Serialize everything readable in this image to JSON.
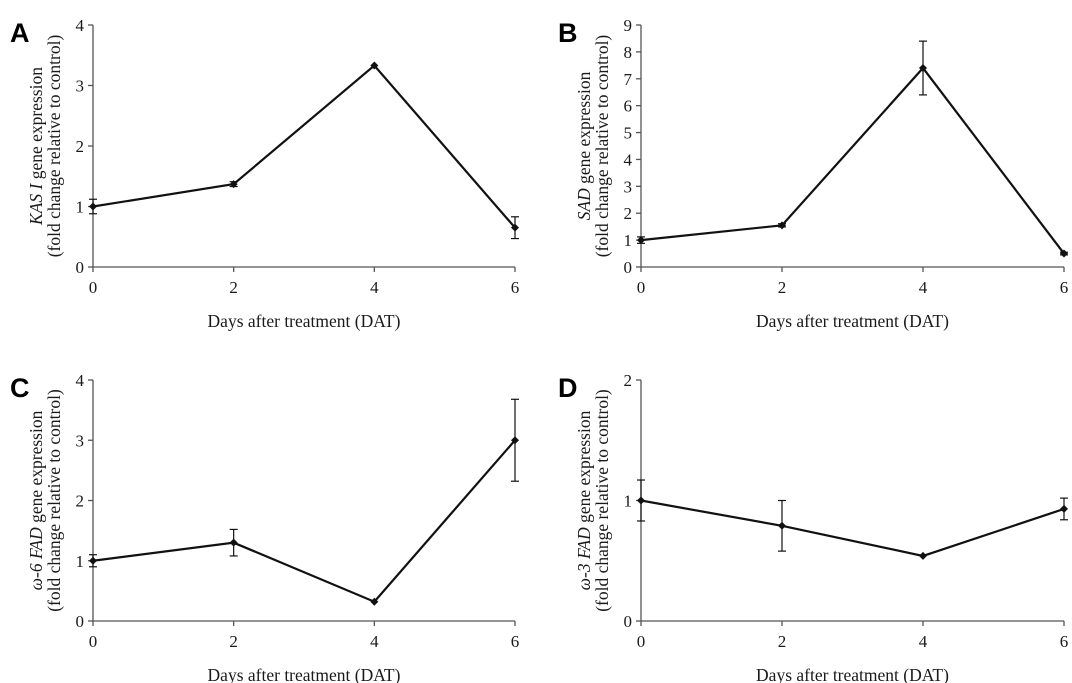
{
  "chart_data": [
    {
      "panel": "A",
      "type": "line",
      "x": [
        0,
        2,
        4,
        6
      ],
      "series": [
        {
          "values": [
            1.0,
            1.37,
            3.33,
            0.65
          ],
          "error": [
            0.12,
            0.04,
            0.0,
            0.18
          ]
        }
      ],
      "ylabel_italic": "KAS I",
      "ylabel_rest": " gene expression",
      "ylabel_line2": "(fold change relative to control)",
      "xlabel": "Days after treatment (DAT)",
      "xticks": [
        "0",
        "2",
        "4",
        "6"
      ],
      "yticks": [
        "0",
        "1",
        "2",
        "3",
        "4"
      ],
      "xlim": [
        0,
        6
      ],
      "ylim": [
        0,
        4
      ]
    },
    {
      "panel": "B",
      "type": "line",
      "x": [
        0,
        2,
        4,
        6
      ],
      "series": [
        {
          "values": [
            1.0,
            1.55,
            7.4,
            0.5
          ],
          "error": [
            0.12,
            0.06,
            1.0,
            0.05
          ]
        }
      ],
      "ylabel_italic": "SAD",
      "ylabel_rest": " gene expression",
      "ylabel_line2": "(fold change relative to control)",
      "xlabel": "Days after treatment (DAT)",
      "xticks": [
        "0",
        "2",
        "4",
        "6"
      ],
      "yticks": [
        "0",
        "1",
        "2",
        "3",
        "4",
        "5",
        "6",
        "7",
        "8",
        "9"
      ],
      "xlim": [
        0,
        6
      ],
      "ylim": [
        0,
        9
      ]
    },
    {
      "panel": "C",
      "type": "line",
      "x": [
        0,
        2,
        4,
        6
      ],
      "series": [
        {
          "values": [
            1.0,
            1.3,
            0.32,
            3.0
          ],
          "error": [
            0.1,
            0.22,
            0.0,
            0.68
          ]
        }
      ],
      "ylabel_italic": "ω-6 FAD",
      "ylabel_rest": " gene expression",
      "ylabel_line2": "(fold change relative to control)",
      "xlabel": "Days after treatment (DAT)",
      "xticks": [
        "0",
        "2",
        "4",
        "6"
      ],
      "yticks": [
        "0",
        "1",
        "2",
        "3",
        "4"
      ],
      "xlim": [
        0,
        6
      ],
      "ylim": [
        0,
        4
      ]
    },
    {
      "panel": "D",
      "type": "line",
      "x": [
        0,
        2,
        4,
        6
      ],
      "series": [
        {
          "values": [
            1.0,
            0.79,
            0.54,
            0.93
          ],
          "error": [
            0.17,
            0.21,
            0.0,
            0.09
          ]
        }
      ],
      "ylabel_italic": "ω-3 FAD",
      "ylabel_rest": " gene expression",
      "ylabel_line2": "(fold change relative to control)",
      "xlabel": "Days after treatment (DAT)",
      "xticks": [
        "0",
        "2",
        "4",
        "6"
      ],
      "yticks": [
        "0",
        "1",
        "2"
      ],
      "xlim": [
        0,
        6
      ],
      "ylim": [
        0,
        2
      ]
    }
  ],
  "colors": {
    "line": "#111111",
    "axis": "#555555"
  }
}
